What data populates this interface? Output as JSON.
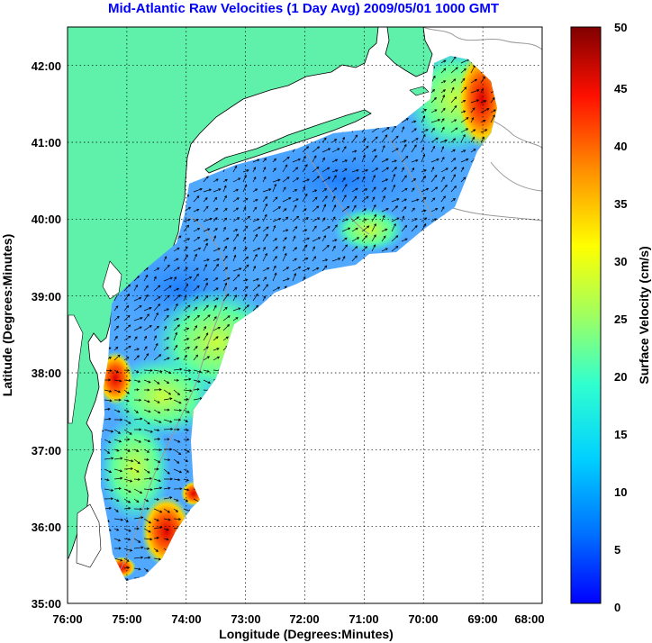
{
  "title": "Mid-Atlantic Raw Velocities (1 Day Avg) 2009/05/01 1000 GMT",
  "x_axis": {
    "label": "Longitude (Degrees:Minutes)",
    "ticks": [
      "76:00",
      "75:00",
      "74:00",
      "73:00",
      "72:00",
      "71:00",
      "70:00",
      "69:00",
      "68:00"
    ],
    "range": [
      -76,
      -68
    ]
  },
  "y_axis": {
    "label": "Latitude (Degrees:Minutes)",
    "ticks": [
      "35:00",
      "36:00",
      "37:00",
      "38:00",
      "39:00",
      "40:00",
      "41:00",
      "42:00"
    ],
    "range": [
      35,
      42.5
    ]
  },
  "colorbar": {
    "label": "Surface Velocity (cm/s)",
    "ticks": [
      "0",
      "5",
      "10",
      "15",
      "20",
      "25",
      "30",
      "35",
      "40",
      "45",
      "50"
    ],
    "range": [
      0,
      50
    ],
    "colormap": "jet"
  },
  "colors": {
    "land": "#5ff0aa",
    "ocean_background": "#ffffff",
    "title": "#0000ff",
    "bathymetry": "#999999"
  },
  "chart_data": {
    "type": "heatmap",
    "title": "Mid-Atlantic Raw Velocities (1 Day Avg) 2009/05/01 1000 GMT",
    "xlabel": "Longitude (Degrees:Minutes)",
    "ylabel": "Latitude (Degrees:Minutes)",
    "xlim": [
      -76,
      -68
    ],
    "ylim": [
      35,
      42.5
    ],
    "grid": true,
    "colorbar_label": "Surface Velocity (cm/s)",
    "colorbar_range": [
      0,
      50
    ],
    "high_velocity_regions": [
      {
        "lon": -68.8,
        "lat": 41.5,
        "speed": 45
      },
      {
        "lon": -74.4,
        "lat": 35.8,
        "speed": 45
      },
      {
        "lon": -75.1,
        "lat": 38.1,
        "speed": 40
      },
      {
        "lon": -74.4,
        "lat": 37.6,
        "speed": 35
      },
      {
        "lon": -74.3,
        "lat": 36.3,
        "speed": 35
      },
      {
        "lon": -70.8,
        "lat": 39.7,
        "speed": 28
      },
      {
        "lon": -75.1,
        "lat": 35.4,
        "speed": 30
      }
    ]
  }
}
